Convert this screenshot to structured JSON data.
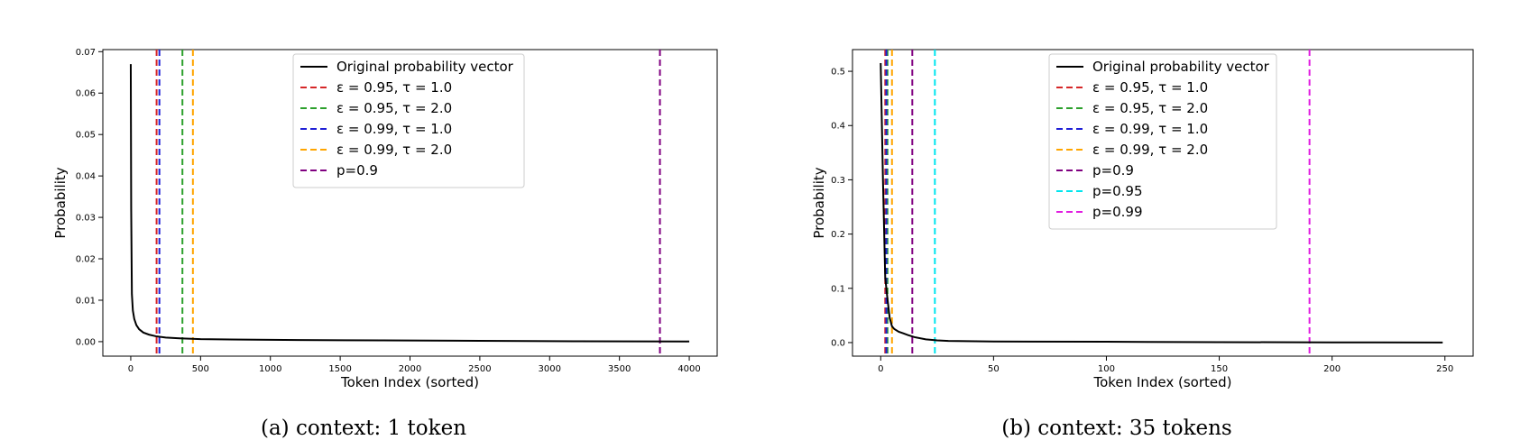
{
  "chart_data": [
    {
      "type": "line",
      "caption": "(a) context: 1 token",
      "xlabel": "Token Index (sorted)",
      "ylabel": "Probability",
      "xlim": [
        -200,
        4200
      ],
      "ylim": [
        -0.0035,
        0.0705
      ],
      "xticks": [
        0,
        500,
        1000,
        1500,
        2000,
        2500,
        3000,
        3500,
        4000
      ],
      "xtick_labels": [
        "0",
        "500",
        "1000",
        "1500",
        "2000",
        "2500",
        "3000",
        "3500",
        "4000"
      ],
      "yticks": [
        0.0,
        0.01,
        0.02,
        0.03,
        0.04,
        0.05,
        0.06,
        0.07
      ],
      "ytick_labels": [
        "0.00",
        "0.01",
        "0.02",
        "0.03",
        "0.04",
        "0.05",
        "0.06",
        "0.07"
      ],
      "legend_position": "upper-center",
      "series": [
        {
          "name": "Original probability vector",
          "color": "#000000",
          "style": "solid",
          "x": [
            0,
            3,
            8,
            15,
            25,
            40,
            60,
            90,
            130,
            180,
            250,
            350,
            500,
            800,
            1200,
            1800,
            2500,
            3200,
            4000
          ],
          "y": [
            0.067,
            0.032,
            0.0115,
            0.0075,
            0.0055,
            0.004,
            0.003,
            0.0022,
            0.0017,
            0.0013,
            0.001,
            0.0008,
            0.0006,
            0.0005,
            0.0004,
            0.0003,
            0.0002,
            0.0001,
            5e-05
          ]
        }
      ],
      "vlines": [
        {
          "name": "ε = 0.95, τ = 1.0",
          "x": 185,
          "color": "#d62728"
        },
        {
          "name": "ε = 0.95, τ = 2.0",
          "x": 370,
          "color": "#2ca02c"
        },
        {
          "name": "ε = 0.99, τ = 1.0",
          "x": 205,
          "color": "#1f1fd6"
        },
        {
          "name": "ε = 0.99, τ = 2.0",
          "x": 445,
          "color": "#ffa500"
        },
        {
          "name": "p=0.9",
          "x": 3790,
          "color": "#800080"
        }
      ]
    },
    {
      "type": "line",
      "caption": "(b) context: 35 tokens",
      "xlabel": "Token Index (sorted)",
      "ylabel": "Probability",
      "xlim": [
        -12.5,
        262.5
      ],
      "ylim": [
        -0.025,
        0.54
      ],
      "xticks": [
        0,
        50,
        100,
        150,
        200,
        250
      ],
      "xtick_labels": [
        "0",
        "50",
        "100",
        "150",
        "200",
        "250"
      ],
      "yticks": [
        0.0,
        0.1,
        0.2,
        0.3,
        0.4,
        0.5
      ],
      "ytick_labels": [
        "0.0",
        "0.1",
        "0.2",
        "0.3",
        "0.4",
        "0.5"
      ],
      "legend_position": "upper-center",
      "series": [
        {
          "name": "Original probability vector",
          "color": "#000000",
          "style": "solid",
          "x": [
            0,
            1,
            2,
            3,
            4,
            5,
            6,
            8,
            10,
            12,
            15,
            20,
            25,
            30,
            50,
            100,
            150,
            200,
            249
          ],
          "y": [
            0.515,
            0.3,
            0.12,
            0.08,
            0.045,
            0.03,
            0.025,
            0.02,
            0.017,
            0.014,
            0.01,
            0.006,
            0.004,
            0.003,
            0.002,
            0.0015,
            0.0008,
            0.0004,
            0.0002
          ]
        }
      ],
      "vlines": [
        {
          "name": "ε = 0.95, τ = 1.0",
          "x": 2,
          "color": "#d62728"
        },
        {
          "name": "ε = 0.95, τ = 2.0",
          "x": 3,
          "color": "#2ca02c"
        },
        {
          "name": "ε = 0.99, τ = 1.0",
          "x": 2.5,
          "color": "#1f1fd6"
        },
        {
          "name": "ε = 0.99, τ = 2.0",
          "x": 5,
          "color": "#ffa500"
        },
        {
          "name": "p=0.9",
          "x": 14,
          "color": "#800080"
        },
        {
          "name": "p=0.95",
          "x": 24,
          "color": "#00e5ee"
        },
        {
          "name": "p=0.99",
          "x": 190,
          "color": "#e11de1"
        }
      ]
    }
  ]
}
